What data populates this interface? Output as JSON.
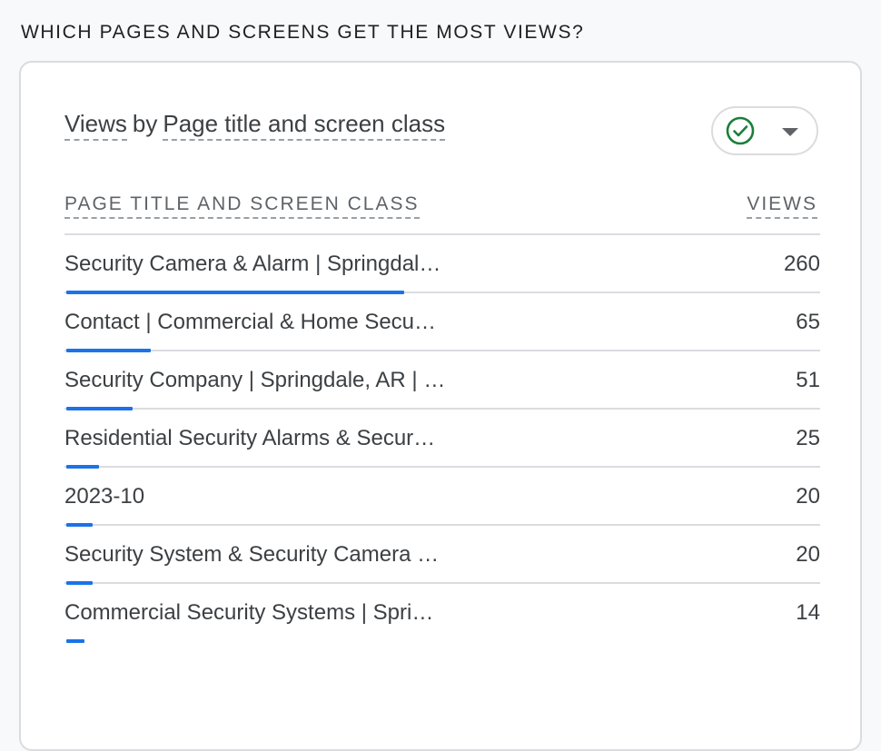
{
  "section": {
    "heading": "WHICH PAGES AND SCREENS GET THE MOST VIEWS?"
  },
  "card": {
    "metric": "Views",
    "by": "by",
    "dimension": "Page title and screen class"
  },
  "compare_button": {
    "icon": "check-circle-icon",
    "status_color": "#188038",
    "caret_icon": "chevron-down-icon"
  },
  "table": {
    "columns": [
      "PAGE TITLE AND SCREEN CLASS",
      "VIEWS"
    ],
    "bar_color": "#1a73e8",
    "max_value": 260,
    "rows": [
      {
        "label": "Security Camera & Alarm | Springdal…",
        "value": 260
      },
      {
        "label": "Contact | Commercial & Home Secu…",
        "value": 65
      },
      {
        "label": "Security Company | Springdale, AR | …",
        "value": 51
      },
      {
        "label": "Residential Security Alarms & Secur…",
        "value": 25
      },
      {
        "label": "2023-10",
        "value": 20
      },
      {
        "label": "Security System & Security Camera …",
        "value": 20
      },
      {
        "label": "Commercial Security Systems | Spri…",
        "value": 14
      }
    ]
  }
}
